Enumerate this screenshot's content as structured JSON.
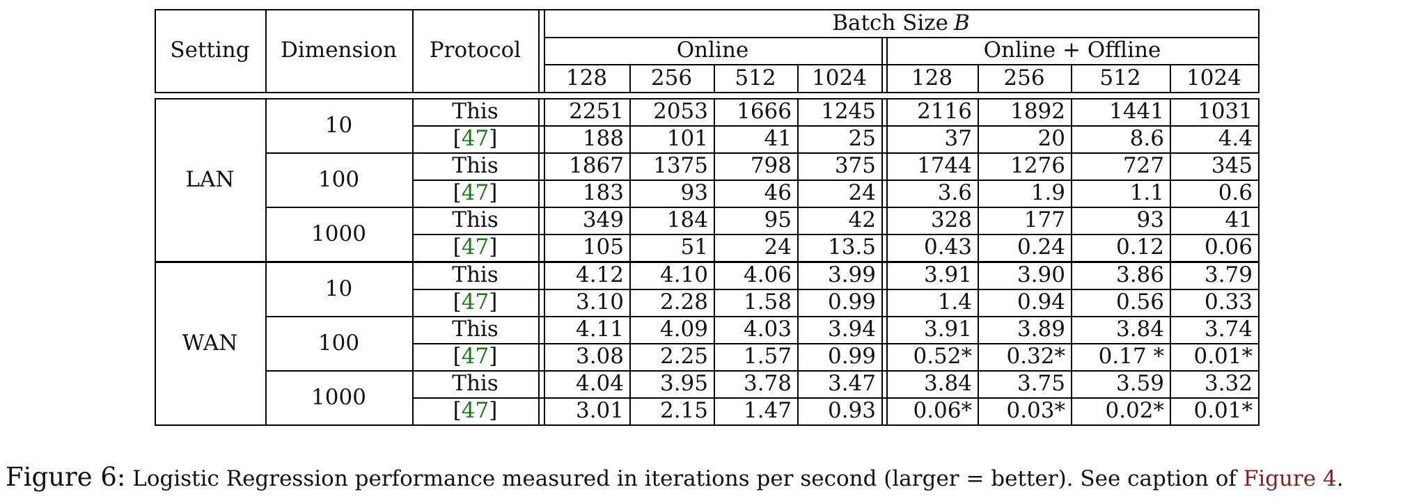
{
  "chart_data": {
    "type": "table",
    "header": {
      "col_setting": "Setting",
      "col_dimension": "Dimension",
      "col_protocol": "Protocol",
      "group_top": "Batch Size",
      "group_top_var": "B",
      "group_online": "Online",
      "group_online_offline": "Online + Offline",
      "batch_sizes": [
        "128",
        "256",
        "512",
        "1024"
      ]
    },
    "settings": [
      {
        "name": "LAN",
        "dimensions": [
          {
            "dim": "10",
            "rows": [
              {
                "protocol": "This",
                "online": [
                  "2251",
                  "2053",
                  "1666",
                  "1245"
                ],
                "offline": [
                  "2116",
                  "1892",
                  "1441",
                  "1031"
                ]
              },
              {
                "protocol": "[47]",
                "online": [
                  "188",
                  "101",
                  "41",
                  "25"
                ],
                "offline": [
                  "37",
                  "20",
                  "8.6",
                  "4.4"
                ]
              }
            ]
          },
          {
            "dim": "100",
            "rows": [
              {
                "protocol": "This",
                "online": [
                  "1867",
                  "1375",
                  "798",
                  "375"
                ],
                "offline": [
                  "1744",
                  "1276",
                  "727",
                  "345"
                ]
              },
              {
                "protocol": "[47]",
                "online": [
                  "183",
                  "93",
                  "46",
                  "24"
                ],
                "offline": [
                  "3.6",
                  "1.9",
                  "1.1",
                  "0.6"
                ]
              }
            ]
          },
          {
            "dim": "1000",
            "rows": [
              {
                "protocol": "This",
                "online": [
                  "349",
                  "184",
                  "95",
                  "42"
                ],
                "offline": [
                  "328",
                  "177",
                  "93",
                  "41"
                ]
              },
              {
                "protocol": "[47]",
                "online": [
                  "105",
                  "51",
                  "24",
                  "13.5"
                ],
                "offline": [
                  "0.43",
                  "0.24",
                  "0.12",
                  "0.06"
                ]
              }
            ]
          }
        ]
      },
      {
        "name": "WAN",
        "dimensions": [
          {
            "dim": "10",
            "rows": [
              {
                "protocol": "This",
                "online": [
                  "4.12",
                  "4.10",
                  "4.06",
                  "3.99"
                ],
                "offline": [
                  "3.91",
                  "3.90",
                  "3.86",
                  "3.79"
                ]
              },
              {
                "protocol": "[47]",
                "online": [
                  "3.10",
                  "2.28",
                  "1.58",
                  "0.99"
                ],
                "offline": [
                  "1.4",
                  "0.94",
                  "0.56",
                  "0.33"
                ]
              }
            ]
          },
          {
            "dim": "100",
            "rows": [
              {
                "protocol": "This",
                "online": [
                  "4.11",
                  "4.09",
                  "4.03",
                  "3.94"
                ],
                "offline": [
                  "3.91",
                  "3.89",
                  "3.84",
                  "3.74"
                ]
              },
              {
                "protocol": "[47]",
                "online": [
                  "3.08",
                  "2.25",
                  "1.57",
                  "0.99"
                ],
                "offline": [
                  "0.52*",
                  "0.32*",
                  "0.17 *",
                  "0.01*"
                ]
              }
            ]
          },
          {
            "dim": "1000",
            "rows": [
              {
                "protocol": "This",
                "online": [
                  "4.04",
                  "3.95",
                  "3.78",
                  "3.47"
                ],
                "offline": [
                  "3.84",
                  "3.75",
                  "3.59",
                  "3.32"
                ]
              },
              {
                "protocol": "[47]",
                "online": [
                  "3.01",
                  "2.15",
                  "1.47",
                  "0.93"
                ],
                "offline": [
                  "0.06*",
                  "0.03*",
                  "0.02*",
                  "0.01*"
                ]
              }
            ]
          }
        ]
      }
    ]
  },
  "caption": {
    "lead": "Figure 6:",
    "text": "Logistic Regression performance measured in iterations per second (larger = better). See caption of",
    "link": "Figure 4",
    "end": "."
  },
  "colors": {
    "reference": "#1a7a1a",
    "link": "#8b1a1a"
  }
}
